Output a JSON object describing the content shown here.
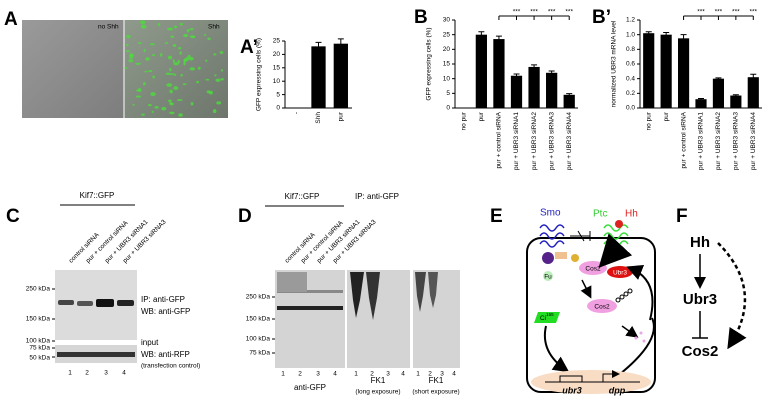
{
  "panel_a": {
    "label": "A",
    "left_label": "no Shh",
    "right_label": "Shh"
  },
  "chart_data": [
    {
      "type": "bar",
      "panel_label": "A’",
      "y_label": "GFP expressing cells (%)",
      "categories": [
        "-",
        "Shh",
        "pur"
      ],
      "values": [
        0,
        23,
        24
      ],
      "errors": [
        0,
        1.5,
        1.8
      ],
      "color": "#000000",
      "ylim": [
        0,
        25
      ],
      "yticks": [
        0,
        5,
        10,
        15,
        20,
        25
      ]
    },
    {
      "type": "bar",
      "panel_label": "B",
      "y_label": "GFP expressing cells (%)",
      "categories": [
        "no pur",
        "pur",
        "pur + control siRNA",
        "pur + UBR3 siRNA1",
        "pur + UBR3 siRNA2",
        "pur + UBR3 siRNA3",
        "pur + UBR3 siRNA4"
      ],
      "values": [
        0,
        25,
        23.5,
        11,
        14,
        12,
        4.5
      ],
      "errors": [
        0,
        1,
        1,
        0.6,
        0.7,
        0.6,
        0.4
      ],
      "significance": [
        null,
        null,
        null,
        "***",
        "***",
        "***",
        "***"
      ],
      "color": "#000000",
      "ylim": [
        0,
        30
      ],
      "yticks": [
        0,
        5,
        10,
        15,
        20,
        25,
        30
      ]
    },
    {
      "type": "bar",
      "panel_label": "B’",
      "y_label": "normalized UBR3 mRNA level",
      "categories": [
        "no pur",
        "pur",
        "pur + control siRNA",
        "pur + UBR3 siRNA1",
        "pur + UBR3 siRNA2",
        "pur + UBR3 siRNA3",
        "pur + UBR3 siRNA4"
      ],
      "values": [
        1.02,
        1.0,
        0.95,
        0.12,
        0.4,
        0.17,
        0.42
      ],
      "errors": [
        0.02,
        0.03,
        0.05,
        0.01,
        0.01,
        0.01,
        0.04
      ],
      "significance": [
        null,
        null,
        null,
        "***",
        "***",
        "***",
        "***"
      ],
      "color": "#000000",
      "ylim": [
        0,
        1.2
      ],
      "yticks": [
        {
          "value": 0,
          "label": "0.0"
        },
        0.2,
        0.4,
        0.6,
        0.8,
        {
          "value": 1,
          "label": "1.0"
        },
        1.2
      ]
    }
  ],
  "panel_c": {
    "label": "C",
    "construct": "Kif7::GFP",
    "lanes_header": [
      "control siRNA",
      "pur + control siRNA",
      "pur + UBR3 siRNA1",
      "pur + UBR3 siRNA3"
    ],
    "markers": [
      "250 kDa",
      "150 kDa",
      "100 kDa",
      "75 kDa",
      "50 kDa"
    ],
    "annotations": [
      "IP: anti-GFP",
      "WB: anti-GFP",
      "input",
      "WB: anti-RFP",
      "(transfection control)"
    ],
    "lane_numbers": [
      1,
      2,
      3,
      4
    ]
  },
  "panel_d": {
    "label": "D",
    "construct": "Kif7::GFP",
    "ip": "IP: anti-GFP",
    "lanes_header": [
      "control siRNA",
      "pur + control siRNA",
      "pur + UBR3 siRNA1",
      "pur + UBR3 siRNA3"
    ],
    "markers": [
      "250 kDa",
      "150 kDa",
      "100 kDa",
      "75 kDa"
    ],
    "lane_numbers": [
      1,
      2,
      3,
      4,
      1,
      2,
      3,
      4,
      1,
      2,
      3,
      4
    ],
    "blots": [
      {
        "antibody": "anti-GFP"
      },
      {
        "antibody": "FK1",
        "exposure": "(long exposure)"
      },
      {
        "antibody": "FK1",
        "exposure": "(short exposure)"
      }
    ]
  },
  "panel_e": {
    "label": "E",
    "smo": "Smo",
    "ptc": "Ptc",
    "hh": "Hh",
    "cos2_top": "Cos2",
    "ubr3": "Ubr3",
    "fu": "Fu",
    "cos2_bottom": "Cos2",
    "ci": "Ci",
    "ci_form": "155",
    "ubr3_gene": "ubr3",
    "dpp": "dpp"
  },
  "panel_f": {
    "label": "F",
    "nodes": [
      "Hh",
      "Ubr3",
      "Cos2"
    ]
  }
}
